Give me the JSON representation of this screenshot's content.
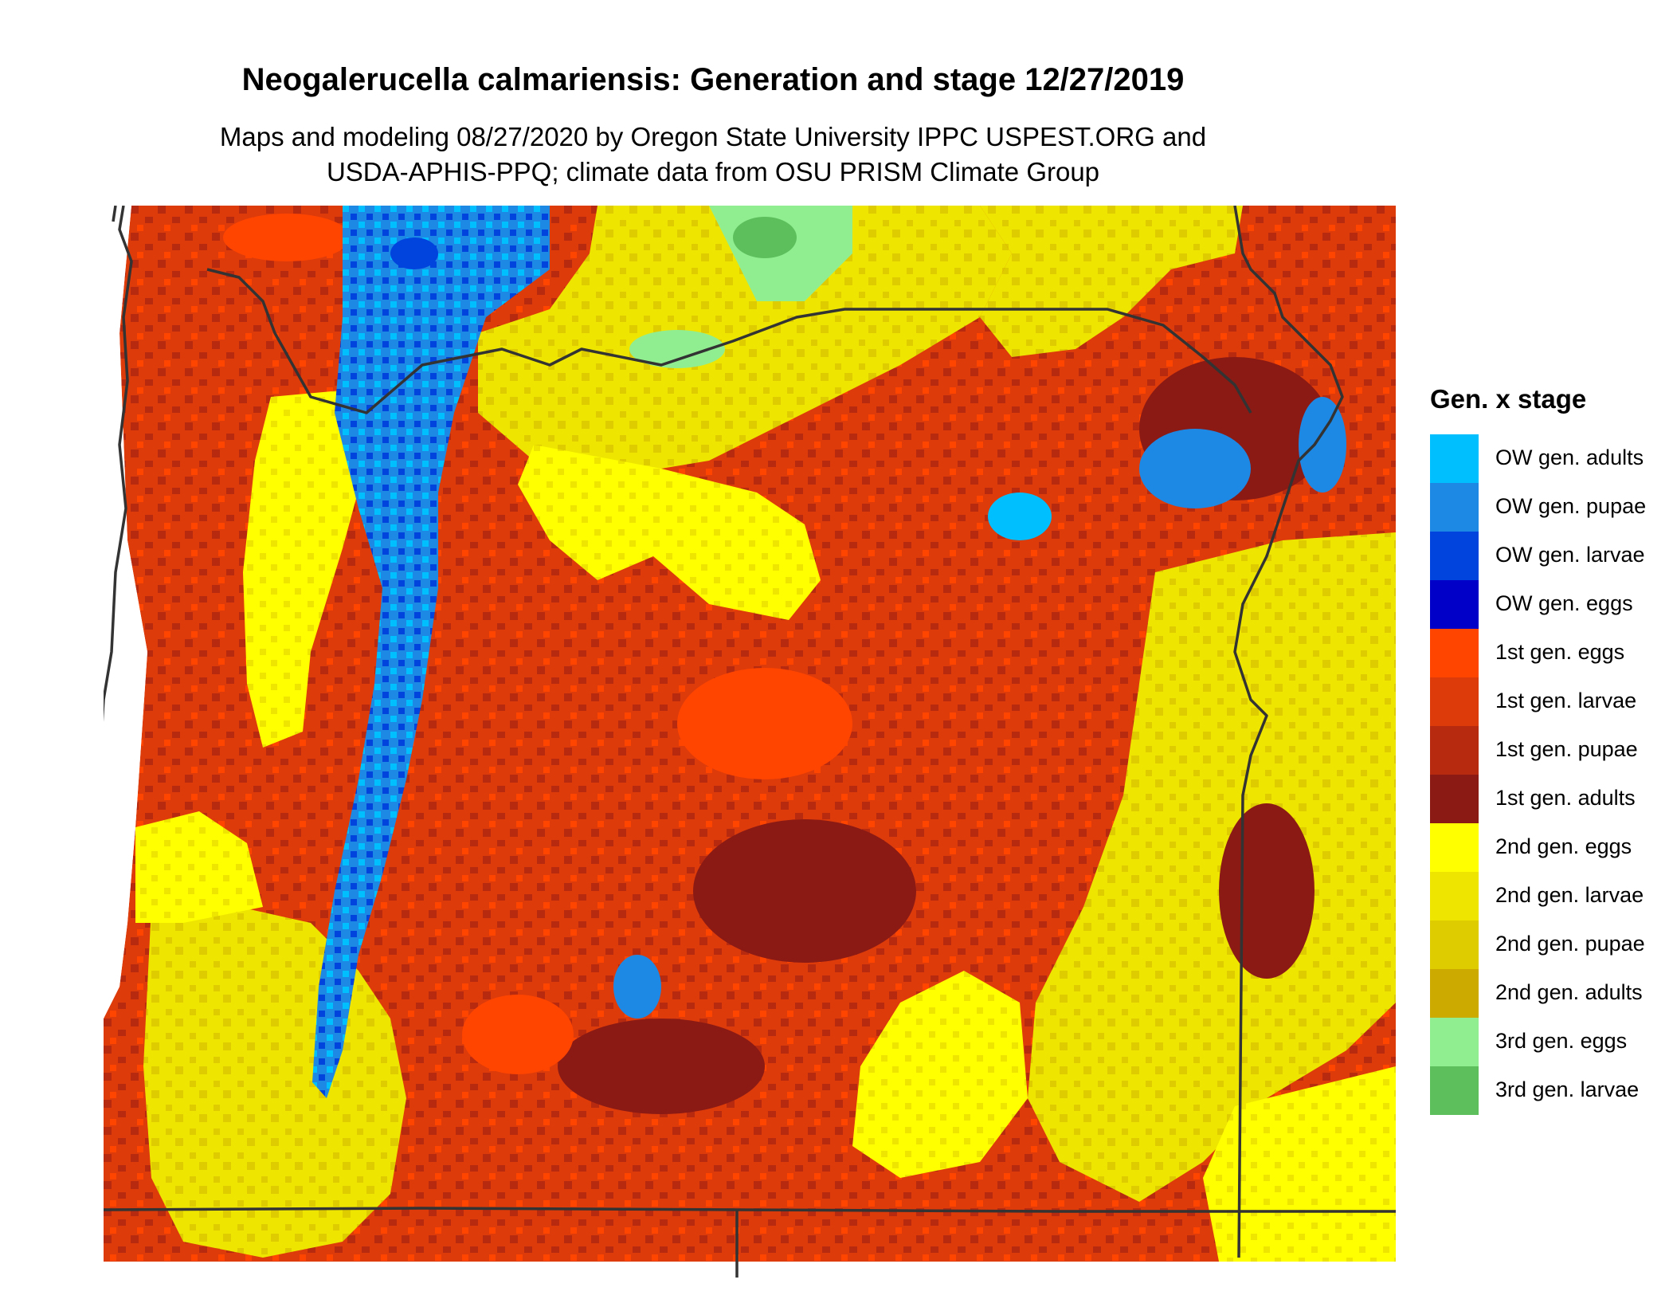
{
  "title": "Neogalerucella calmariensis: Generation and stage 12/27/2019",
  "subtitle_line1": "Maps and modeling 08/27/2020 by Oregon State University IPPC USPEST.ORG and",
  "subtitle_line2": "USDA-APHIS-PPQ; climate data from OSU PRISM Climate Group",
  "legend": {
    "title": "Gen. x stage",
    "items": [
      {
        "label": "OW gen. adults",
        "color": "#00bfff"
      },
      {
        "label": "OW gen. pupae",
        "color": "#1e88e5"
      },
      {
        "label": "OW gen. larvae",
        "color": "#0044dd"
      },
      {
        "label": "OW gen. eggs",
        "color": "#0000c8"
      },
      {
        "label": "1st gen. eggs",
        "color": "#ff4500"
      },
      {
        "label": "1st gen. larvae",
        "color": "#dd3b0a"
      },
      {
        "label": "1st gen. pupae",
        "color": "#b82a10"
      },
      {
        "label": "1st gen. adults",
        "color": "#8b1a14"
      },
      {
        "label": "2nd gen. eggs",
        "color": "#ffff00"
      },
      {
        "label": "2nd gen. larvae",
        "color": "#eee600"
      },
      {
        "label": "2nd gen. pupae",
        "color": "#dfcc00"
      },
      {
        "label": "2nd gen. adults",
        "color": "#ccaa00"
      },
      {
        "label": "3rd gen. eggs",
        "color": "#90ee90"
      },
      {
        "label": "3rd gen. larvae",
        "color": "#5cbf5c"
      }
    ]
  }
}
